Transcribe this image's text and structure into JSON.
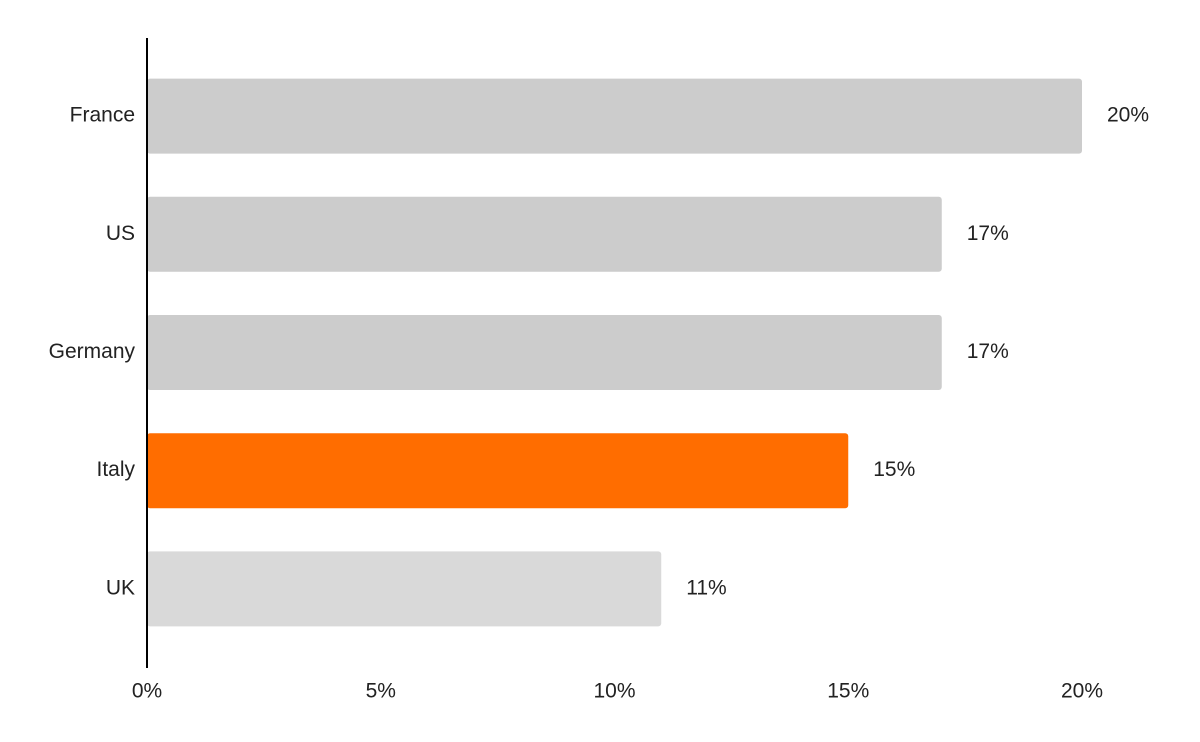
{
  "chart_data": {
    "type": "bar",
    "orientation": "horizontal",
    "categories": [
      "France",
      "US",
      "Germany",
      "Italy",
      "UK"
    ],
    "values": [
      20,
      17,
      17,
      15,
      11
    ],
    "value_labels": [
      "20%",
      "17%",
      "17%",
      "15%",
      "11%"
    ],
    "colors": [
      "#cccccc",
      "#cccccc",
      "#cccccc",
      "#ff6d00",
      "#d9d9d9"
    ],
    "xlim": [
      0,
      20
    ],
    "xticks": [
      {
        "value": 0,
        "label": "0%"
      },
      {
        "value": 5,
        "label": "5%"
      },
      {
        "value": 10,
        "label": "10%"
      },
      {
        "value": 15,
        "label": "15%"
      },
      {
        "value": 20,
        "label": "20%"
      }
    ],
    "grid": false
  }
}
